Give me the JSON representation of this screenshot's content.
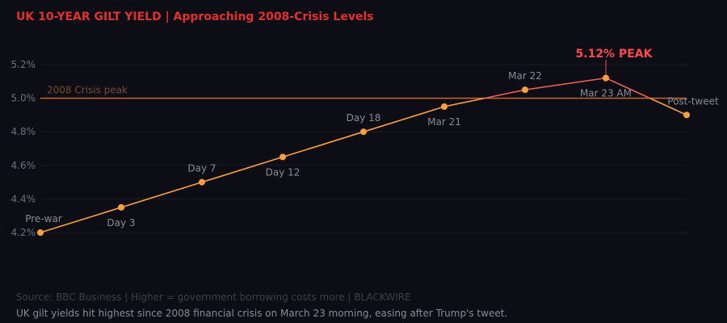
{
  "title": "UK 10-YEAR GILT YIELD  |  Approaching 2008-Crisis Levels",
  "source": "Source: BBC Business  |  Higher = government borrowing costs more  |  BLACKWIRE",
  "caption": "UK gilt yields hit highest since 2008 financial crisis on March 23 morning, easing after Trump's tweet.",
  "chart_data": {
    "type": "line",
    "categories": [
      "Pre-war",
      "Day 3",
      "Day 7",
      "Day 12",
      "Day 18",
      "Mar 21",
      "Mar 22",
      "Mar 23 AM",
      "Post-tweet"
    ],
    "values": [
      4.2,
      4.35,
      4.5,
      4.65,
      4.8,
      4.95,
      5.05,
      5.12,
      4.9
    ],
    "ylim": [
      4.2,
      5.2
    ],
    "yticks": [
      "4.2%",
      "4.4%",
      "4.6%",
      "4.8%",
      "5.0%",
      "5.2%"
    ],
    "ytick_values": [
      4.2,
      4.4,
      4.6,
      4.8,
      5.0,
      5.2
    ],
    "grid": true,
    "reference_line": {
      "value": 5.0,
      "label": "2008 Crisis peak"
    },
    "peak_annotation": "5.12% PEAK",
    "colors": {
      "line": "#ffa040",
      "above_reference": "#f06050",
      "reference": "#c8642a",
      "peak": "#ff4a4a",
      "title": "#e0312f"
    }
  }
}
